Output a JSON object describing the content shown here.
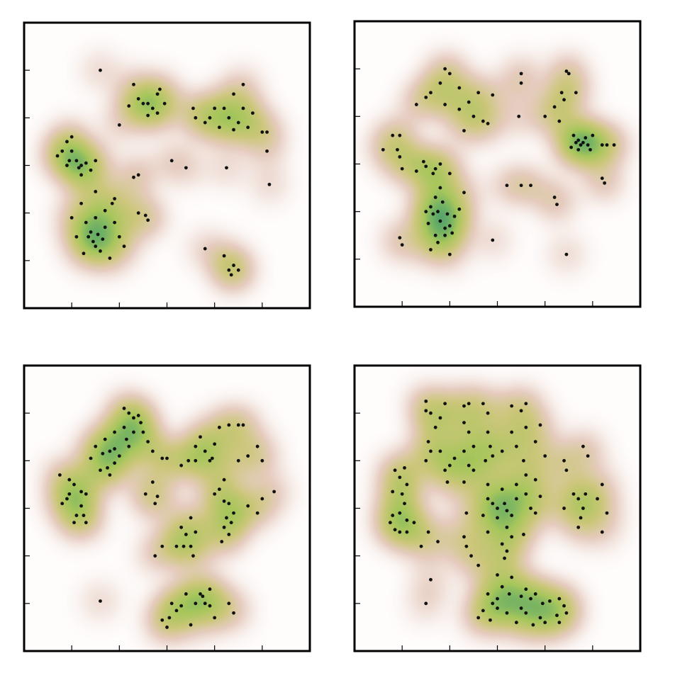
{
  "chart_data": [
    {
      "type": "scatter",
      "color": "#111111",
      "xlim": [
        0,
        6
      ],
      "ylim": [
        0,
        6
      ],
      "xticks": [
        1,
        2,
        3,
        4,
        5
      ],
      "yticks": [
        1,
        2,
        3,
        4,
        5
      ],
      "x": [
        1.6,
        2.3,
        2.4,
        2.6,
        2.8,
        2.8,
        2.85,
        2.7,
        2.95,
        2.6,
        2.2,
        2.0,
        2.5,
        4.6,
        4.4,
        4.6,
        4.8,
        4.2,
        4.0,
        3.9,
        3.6,
        3.55,
        3.8,
        4.3,
        4.5,
        4.7,
        4.4,
        4.1,
        5.0,
        5.1,
        5.1,
        1.0,
        0.9,
        0.7,
        1.0,
        1.1,
        1.2,
        1.3,
        0.9,
        1.4,
        1.2,
        1.5,
        0.8,
        1.15,
        0.95,
        3.1,
        3.4,
        4.25,
        2.3,
        2.4,
        5.15,
        1.5,
        1.85,
        1.9,
        2.4,
        2.6,
        2.55,
        1.2,
        1.0,
        1.1,
        1.3,
        1.4,
        1.5,
        1.6,
        1.65,
        1.55,
        1.45,
        1.35,
        1.7,
        1.9,
        2.0,
        1.8,
        2.1,
        1.25,
        1.7,
        1.5,
        3.8,
        4.2,
        4.3,
        4.5,
        4.4,
        4.35
      ],
      "values": [
        5.0,
        4.7,
        4.4,
        4.3,
        4.1,
        4.5,
        4.6,
        4.2,
        4.3,
        4.05,
        4.25,
        3.85,
        4.3,
        4.7,
        4.5,
        4.2,
        4.1,
        4.2,
        4.2,
        4.0,
        4.0,
        4.2,
        3.9,
        4.0,
        3.9,
        3.8,
        3.75,
        3.8,
        3.7,
        3.7,
        3.3,
        3.6,
        3.5,
        3.2,
        3.3,
        3.1,
        3.0,
        3.05,
        3.0,
        2.9,
        2.8,
        3.1,
        3.3,
        2.95,
        3.1,
        3.1,
        2.95,
        2.95,
        2.75,
        2.8,
        2.6,
        2.45,
        2.2,
        2.3,
        2.0,
        1.85,
        1.95,
        2.2,
        1.9,
        1.5,
        1.8,
        1.6,
        1.3,
        1.2,
        1.45,
        1.55,
        1.4,
        1.5,
        1.7,
        1.8,
        1.5,
        1.05,
        1.3,
        1.15,
        2.05,
        1.9,
        1.25,
        1.1,
        0.8,
        0.8,
        0.9,
        0.7
      ]
    },
    {
      "type": "scatter",
      "color": "#111111",
      "xlim": [
        0,
        6
      ],
      "ylim": [
        0,
        6
      ],
      "xticks": [
        1,
        2,
        3,
        4,
        5
      ],
      "yticks": [
        1,
        2,
        3,
        4,
        5
      ],
      "x": [
        1.9,
        2.0,
        1.8,
        2.2,
        1.6,
        2.4,
        2.6,
        2.9,
        1.9,
        2.2,
        2.5,
        2.7,
        2.8,
        1.5,
        1.3,
        2.3,
        3.5,
        3.5,
        3.45,
        4.45,
        4.5,
        4.65,
        4.4,
        4.2,
        4.0,
        4.3,
        4.35,
        4.6,
        4.7,
        4.75,
        4.8,
        4.9,
        4.7,
        4.65,
        4.85,
        4.95,
        5.2,
        5.3,
        5.45,
        5.0,
        4.55,
        5.2,
        5.25,
        0.8,
        0.95,
        0.9,
        0.6,
        0.95,
        1.0,
        1.3,
        1.5,
        1.7,
        1.8,
        1.65,
        2.0,
        1.45,
        1.8,
        1.7,
        1.6,
        1.5,
        1.55,
        1.7,
        1.75,
        1.9,
        2.0,
        2.1,
        2.2,
        1.85,
        1.95,
        1.8,
        1.65,
        1.9,
        2.05,
        1.75,
        2.3,
        1.0,
        0.95,
        2.9,
        2.0,
        1.6,
        3.2,
        3.5,
        3.7,
        4.2,
        4.25,
        4.45
      ],
      "values": [
        5.0,
        4.9,
        4.7,
        4.6,
        4.5,
        4.3,
        4.5,
        4.45,
        4.25,
        4.15,
        4.0,
        3.9,
        3.85,
        4.4,
        4.25,
        3.7,
        4.9,
        4.7,
        4.0,
        4.95,
        4.9,
        4.5,
        4.35,
        4.2,
        4.0,
        3.9,
        4.5,
        3.6,
        3.5,
        3.4,
        3.45,
        3.4,
        3.3,
        3.45,
        3.55,
        3.3,
        3.4,
        3.4,
        3.4,
        3.6,
        3.35,
        2.7,
        2.6,
        3.6,
        3.6,
        3.3,
        3.3,
        3.15,
        2.9,
        2.85,
        2.95,
        2.9,
        3.0,
        2.8,
        2.8,
        3.05,
        2.5,
        2.3,
        2.1,
        2.0,
        1.75,
        1.5,
        1.35,
        1.5,
        1.7,
        1.9,
        2.05,
        2.2,
        1.95,
        1.8,
        1.95,
        1.65,
        1.55,
        2.0,
        2.4,
        1.3,
        1.45,
        1.4,
        1.1,
        1.2,
        2.55,
        2.55,
        2.55,
        2.3,
        2.15,
        1.1
      ]
    },
    {
      "type": "scatter",
      "color": "#111111",
      "xlim": [
        0,
        6
      ],
      "ylim": [
        0,
        6
      ],
      "xticks": [
        1,
        2,
        3,
        4,
        5
      ],
      "yticks": [
        1,
        2,
        3,
        4,
        5
      ],
      "x": [
        2.1,
        2.2,
        2.3,
        2.4,
        2.1,
        1.9,
        1.7,
        1.5,
        1.4,
        1.65,
        1.8,
        1.9,
        2.0,
        1.75,
        1.8,
        1.9,
        2.2,
        2.3,
        2.5,
        2.6,
        2.7,
        2.9,
        3.0,
        1.6,
        2.45,
        2.15,
        0.75,
        0.95,
        1.05,
        1.2,
        0.8,
        0.9,
        1.2,
        1.1,
        1.05,
        1.3,
        1.25,
        0.95,
        1.3,
        2.7,
        2.55,
        2.8,
        2.75,
        1.6,
        4.1,
        4.3,
        4.5,
        4.6,
        3.7,
        3.6,
        3.8,
        3.9,
        3.95,
        3.6,
        3.45,
        3.3,
        4.0,
        4.5,
        4.7,
        4.9,
        5.0,
        4.2,
        4.1,
        4.0,
        4.2,
        4.3,
        4.4,
        4.25,
        4.35,
        4.2,
        4.3,
        4.15,
        5.0,
        5.25,
        4.7,
        4.9,
        3.5,
        3.6,
        3.4,
        3.3,
        3.35,
        3.5,
        3.2,
        2.9,
        2.75,
        3.55,
        3.4,
        3.7,
        3.9,
        3.75,
        3.8,
        3.6,
        3.3,
        3.1,
        3.2,
        3.05,
        2.9,
        3.0,
        3.5,
        3.9,
        4.3,
        4.4,
        4.0
      ],
      "values": [
        5.1,
        5.0,
        4.9,
        4.95,
        4.7,
        4.6,
        4.45,
        4.3,
        4.05,
        4.15,
        4.2,
        4.25,
        4.1,
        3.85,
        3.7,
        3.95,
        4.3,
        4.6,
        4.6,
        4.4,
        4.2,
        4.05,
        4.05,
        3.8,
        4.8,
        4.45,
        3.7,
        3.6,
        3.5,
        3.35,
        3.1,
        3.2,
        3.05,
        2.85,
        2.7,
        2.7,
        2.85,
        3.3,
        3.3,
        3.55,
        3.3,
        3.25,
        3.1,
        1.05,
        4.7,
        4.75,
        4.75,
        4.75,
        4.5,
        4.3,
        4.2,
        4.0,
        4.05,
        4.0,
        4.0,
        3.9,
        4.35,
        4.0,
        4.1,
        4.3,
        4.0,
        3.6,
        3.4,
        3.3,
        3.15,
        3.1,
        2.9,
        2.8,
        2.7,
        2.6,
        2.45,
        2.3,
        3.2,
        3.35,
        3.05,
        2.9,
        2.8,
        2.5,
        2.45,
        2.6,
        2.2,
        2.2,
        2.2,
        2.2,
        2.0,
        2.0,
        1.2,
        1.2,
        1.3,
        1.15,
        1.0,
        1.0,
        0.95,
        1.0,
        0.85,
        0.7,
        0.65,
        0.5,
        0.55,
        0.95,
        1.0,
        0.8,
        0.7
      ]
    },
    {
      "type": "scatter",
      "color": "#111111",
      "xlim": [
        0,
        6
      ],
      "ylim": [
        0,
        6
      ],
      "xticks": [
        1,
        2,
        3,
        4,
        5
      ],
      "yticks": [
        1,
        2,
        3,
        4,
        5
      ],
      "x": [
        1.5,
        1.9,
        2.3,
        2.4,
        2.7,
        3.3,
        3.6,
        3.5,
        1.5,
        1.6,
        1.8,
        1.7,
        1.55,
        1.6,
        1.8,
        1.5,
        1.9,
        1.95,
        2.0,
        2.3,
        2.4,
        2.5,
        2.3,
        2.1,
        2.5,
        2.3,
        2.4,
        2.8,
        2.8,
        2.85,
        2.9,
        2.75,
        3.1,
        3.3,
        3.4,
        3.55,
        3.6,
        3.9,
        3.8,
        4.0,
        4.4,
        4.8,
        4.9,
        4.45,
        0.85,
        0.95,
        1.05,
        1.1,
        1.0,
        0.8,
        1.05,
        0.95,
        1.1,
        0.8,
        0.75,
        1.1,
        0.95,
        0.85,
        1.25,
        2.8,
        3.1,
        3.4,
        3.6,
        3.8,
        3.9,
        2.8,
        2.9,
        3.0,
        3.2,
        3.3,
        3.15,
        3.0,
        2.7,
        3.4,
        3.6,
        3.7,
        3.8,
        3.2,
        3.3,
        3.1,
        3.2,
        3.15,
        2.8,
        2.35,
        3.55,
        4.6,
        4.7,
        4.85,
        4.8,
        4.75,
        4.7,
        5.1,
        5.3,
        5.2,
        4.4,
        5.2,
        1.55,
        1.4,
        1.75,
        2.3,
        2.35,
        2.45,
        2.6,
        1.6,
        1.5,
        3.0,
        3.3,
        3.1,
        3.25,
        3.5,
        3.6,
        3.7,
        3.8,
        3.95,
        4.1,
        4.3,
        4.4,
        4.45,
        4.25,
        4.3,
        3.9,
        3.6,
        3.2,
        3.0,
        2.9,
        2.7,
        2.85,
        3.4,
        3.0,
        2.8,
        3.5,
        4.0,
        3.75,
        2.6
      ],
      "values": [
        5.25,
        5.2,
        5.15,
        5.2,
        5.2,
        5.15,
        5.2,
        5.05,
        5.05,
        5.0,
        4.9,
        4.7,
        4.4,
        4.2,
        4.2,
        4.0,
        3.8,
        3.55,
        3.9,
        4.8,
        4.6,
        4.3,
        4.2,
        4.05,
        3.8,
        3.55,
        3.9,
        5.0,
        4.6,
        4.3,
        4.1,
        4.0,
        4.2,
        4.6,
        4.3,
        4.0,
        4.7,
        4.75,
        4.4,
        4.1,
        4.0,
        4.3,
        4.1,
        3.8,
        3.8,
        3.65,
        3.85,
        3.5,
        3.3,
        3.35,
        3.1,
        2.9,
        2.75,
        2.85,
        2.7,
        2.5,
        2.5,
        2.55,
        2.7,
        3.5,
        3.4,
        3.5,
        3.7,
        3.6,
        3.25,
        3.2,
        3.1,
        3.0,
        2.95,
        2.85,
        3.1,
        2.8,
        2.85,
        3.2,
        3.3,
        3.0,
        2.9,
        2.6,
        2.4,
        2.25,
        2.1,
        1.95,
        2.5,
        2.9,
        2.45,
        3.3,
        3.2,
        3.3,
        3.0,
        2.8,
        2.6,
        3.2,
        2.9,
        2.5,
        3.0,
        3.5,
        2.5,
        2.2,
        2.3,
        2.4,
        2.2,
        2.0,
        1.8,
        1.5,
        1.0,
        1.6,
        1.55,
        1.35,
        1.2,
        1.15,
        1.3,
        1.1,
        1.2,
        1.0,
        1.05,
        1.1,
        0.95,
        0.8,
        0.75,
        0.6,
        0.7,
        0.8,
        0.8,
        0.9,
        1.0,
        0.85,
        0.65,
        0.6,
        1.1,
        1.2,
        0.9,
        0.6,
        0.55,
        0.7
      ]
    }
  ]
}
